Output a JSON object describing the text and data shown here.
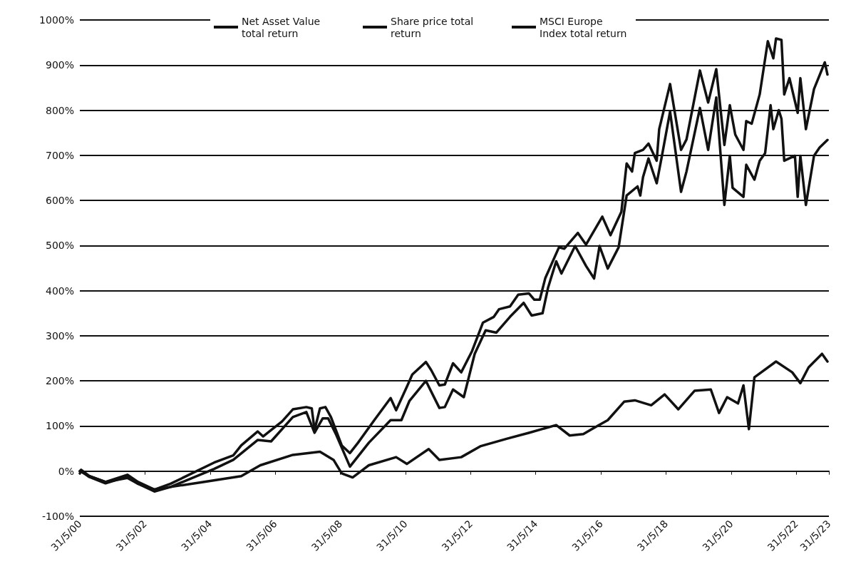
{
  "chart_data": {
    "type": "line",
    "legend": "top",
    "grid": "y",
    "marker": "none",
    "line_style": "solid",
    "xlim": [
      "2000-05-31",
      "2023-05-31"
    ],
    "xticks": [
      {
        "value": "2000-05-31",
        "label": "31/5/00"
      },
      {
        "value": "2002-05-31",
        "label": "31/5/02"
      },
      {
        "value": "2004-05-31",
        "label": "31/5/04"
      },
      {
        "value": "2006-05-31",
        "label": "31/5/06"
      },
      {
        "value": "2008-05-31",
        "label": "31/5/08"
      },
      {
        "value": "2010-05-31",
        "label": "31/5/10"
      },
      {
        "value": "2012-05-31",
        "label": "31/5/12"
      },
      {
        "value": "2014-05-31",
        "label": "31/5/14"
      },
      {
        "value": "2016-05-31",
        "label": "31/5/16"
      },
      {
        "value": "2018-05-31",
        "label": "31/5/18"
      },
      {
        "value": "2020-05-31",
        "label": "31/5/20"
      },
      {
        "value": "2022-05-31",
        "label": "31/5/22"
      },
      {
        "value": "2023-05-31",
        "label": "31/5/23"
      }
    ],
    "ylim": [
      -100,
      1000
    ],
    "yticks": [
      {
        "value": -100,
        "label": "-100%"
      },
      {
        "value": 0,
        "label": "0%"
      },
      {
        "value": 100,
        "label": "100%"
      },
      {
        "value": 200,
        "label": "200%"
      },
      {
        "value": 300,
        "label": "300%"
      },
      {
        "value": 400,
        "label": "400%"
      },
      {
        "value": 500,
        "label": "500%"
      },
      {
        "value": 600,
        "label": "600%"
      },
      {
        "value": 700,
        "label": "700%"
      },
      {
        "value": 800,
        "label": "800%"
      },
      {
        "value": 900,
        "label": "900%"
      },
      {
        "value": 1000,
        "label": "1000%"
      }
    ],
    "series": [
      {
        "name": "Net Asset Value total return",
        "color": "#111111",
        "x": [
          "2000-05-31",
          "2000-06",
          "2000-09",
          "2001-03",
          "2001-11",
          "2002-03",
          "2002-09",
          "2003-03",
          "2004-07",
          "2005-02",
          "2005-05",
          "2005-11",
          "2006-01",
          "2006-04",
          "2006-08",
          "2006-12",
          "2007-05",
          "2007-07",
          "2007-08",
          "2007-10",
          "2007-12",
          "2008-02",
          "2008-06",
          "2008-09",
          "2008-12",
          "2009-06",
          "2009-12",
          "2010-02",
          "2010-06",
          "2010-08",
          "2011-01",
          "2011-03",
          "2011-06",
          "2011-08",
          "2011-11",
          "2012-02",
          "2012-06",
          "2012-10",
          "2013-02",
          "2013-04",
          "2013-08",
          "2013-11",
          "2014-03",
          "2014-05",
          "2014-07",
          "2014-09",
          "2015-02",
          "2015-04",
          "2015-09",
          "2015-12",
          "2016-06",
          "2016-09",
          "2017-01",
          "2017-03",
          "2017-05",
          "2017-06",
          "2017-09",
          "2017-11",
          "2018-02",
          "2018-03",
          "2018-07",
          "2018-11",
          "2019-01",
          "2019-06",
          "2019-09",
          "2019-12",
          "2020-03",
          "2020-05",
          "2020-07",
          "2020-10",
          "2020-11",
          "2021-01",
          "2021-04",
          "2021-07",
          "2021-09",
          "2021-10",
          "2021-12",
          "2022-01",
          "2022-03",
          "2022-06",
          "2022-07",
          "2022-09",
          "2022-12",
          "2023-04",
          "2023-05"
        ],
        "values": [
          0,
          3,
          -11,
          -24,
          -8,
          -24,
          -41,
          -28,
          19,
          35,
          57,
          88,
          77,
          91,
          110,
          137,
          142,
          139,
          91,
          139,
          142,
          120,
          57,
          40,
          63,
          113,
          162,
          135,
          187,
          214,
          242,
          224,
          190,
          192,
          239,
          219,
          266,
          329,
          342,
          359,
          365,
          391,
          394,
          380,
          380,
          428,
          496,
          493,
          528,
          502,
          564,
          523,
          575,
          682,
          664,
          705,
          712,
          726,
          688,
          758,
          858,
          712,
          735,
          888,
          817,
          891,
          723,
          811,
          746,
          712,
          776,
          770,
          835,
          953,
          915,
          959,
          956,
          835,
          871,
          794,
          871,
          758,
          847,
          906,
          879
        ]
      },
      {
        "name": "Share price total return",
        "color": "#111111",
        "x": [
          "2000-05-31",
          "2000-06",
          "2000-09",
          "2001-03",
          "2001-11",
          "2002-03",
          "2002-09",
          "2003-03",
          "2004-07",
          "2005-02",
          "2005-11",
          "2006-04",
          "2006-12",
          "2007-05",
          "2007-08",
          "2007-11",
          "2008-01",
          "2008-04",
          "2008-09",
          "2009-04",
          "2009-12",
          "2010-04",
          "2010-07",
          "2011-01",
          "2011-06",
          "2011-08",
          "2011-11",
          "2012-03",
          "2012-07",
          "2012-11",
          "2013-03",
          "2013-08",
          "2014-01",
          "2014-04",
          "2014-08",
          "2014-10",
          "2015-01",
          "2015-03",
          "2015-08",
          "2015-12",
          "2016-03",
          "2016-05",
          "2016-08",
          "2016-12",
          "2017-03",
          "2017-07",
          "2017-08",
          "2017-09",
          "2017-11",
          "2018-02",
          "2018-04",
          "2018-07",
          "2018-11",
          "2019-01",
          "2019-06",
          "2019-09",
          "2019-12",
          "2020-03",
          "2020-05",
          "2020-06",
          "2020-10",
          "2020-11",
          "2021-02",
          "2021-04",
          "2021-06",
          "2021-08",
          "2021-09",
          "2021-11",
          "2021-12",
          "2022-01",
          "2022-05",
          "2022-06",
          "2022-07",
          "2022-09",
          "2022-12",
          "2023-02",
          "2023-05"
        ],
        "values": [
          -5,
          0,
          -13,
          -27,
          -12,
          -28,
          -45,
          -35,
          5,
          25,
          69,
          66,
          120,
          131,
          85,
          117,
          117,
          80,
          10,
          63,
          113,
          113,
          156,
          200,
          140,
          142,
          181,
          164,
          260,
          312,
          307,
          342,
          373,
          345,
          350,
          406,
          465,
          438,
          499,
          455,
          427,
          499,
          449,
          496,
          611,
          631,
          611,
          652,
          693,
          638,
          699,
          797,
          619,
          664,
          805,
          712,
          828,
          590,
          699,
          628,
          608,
          679,
          646,
          688,
          705,
          811,
          758,
          800,
          781,
          688,
          699,
          608,
          699,
          590,
          699,
          717,
          734
        ]
      },
      {
        "name": "MSCI Europe Index total return",
        "color": "#111111",
        "x": [
          "2000-05-31",
          "2000-09",
          "2001-03",
          "2001-11",
          "2002-03",
          "2002-09",
          "2003-03",
          "2004-03",
          "2005-05",
          "2005-12",
          "2006-12",
          "2007-10",
          "2008-03",
          "2008-06",
          "2008-10",
          "2009-04",
          "2010-02",
          "2010-06",
          "2011-02",
          "2011-06",
          "2012-02",
          "2012-09",
          "2013-07",
          "2014-03",
          "2015-01",
          "2015-06",
          "2015-11",
          "2016-03",
          "2016-08",
          "2017-02",
          "2017-06",
          "2017-12",
          "2018-05",
          "2018-10",
          "2019-04",
          "2019-10",
          "2020-01",
          "2020-04",
          "2020-08",
          "2020-10",
          "2020-12",
          "2021-02",
          "2021-10",
          "2022-04",
          "2022-07",
          "2022-10",
          "2023-03",
          "2023-05"
        ],
        "values": [
          0,
          -11,
          -24,
          -15,
          -28,
          -41,
          -35,
          -24,
          -11,
          13,
          36,
          43,
          25,
          -5,
          -14,
          13,
          31,
          16,
          49,
          25,
          31,
          55,
          72,
          85,
          102,
          79,
          82,
          96,
          113,
          154,
          157,
          146,
          170,
          137,
          178,
          181,
          129,
          164,
          150,
          190,
          93,
          208,
          243,
          219,
          195,
          230,
          260,
          243
        ]
      }
    ]
  }
}
